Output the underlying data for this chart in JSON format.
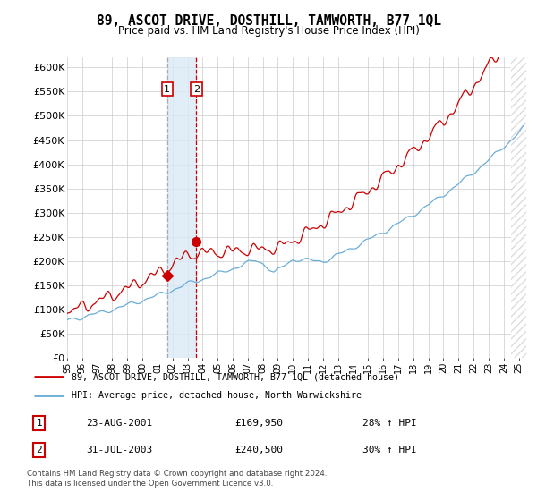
{
  "title": "89, ASCOT DRIVE, DOSTHILL, TAMWORTH, B77 1QL",
  "subtitle": "Price paid vs. HM Land Registry's House Price Index (HPI)",
  "xlim_start": 1995.0,
  "xlim_end": 2025.5,
  "ylim_min": 0,
  "ylim_max": 620000,
  "yticks": [
    0,
    50000,
    100000,
    150000,
    200000,
    250000,
    300000,
    350000,
    400000,
    450000,
    500000,
    550000,
    600000
  ],
  "ytick_labels": [
    "£0",
    "£50K",
    "£100K",
    "£150K",
    "£200K",
    "£250K",
    "£300K",
    "£350K",
    "£400K",
    "£450K",
    "£500K",
    "£550K",
    "£600K"
  ],
  "sale1_year": 2001.646,
  "sale1_price": 169950,
  "sale2_year": 2003.581,
  "sale2_price": 240500,
  "highlight_color": "#daeaf7",
  "vline1_color": "#aaaaaa",
  "vline2_color": "#cc0000",
  "legend_line1": "89, ASCOT DRIVE, DOSTHILL, TAMWORTH, B77 1QL (detached house)",
  "legend_line2": "HPI: Average price, detached house, North Warwickshire",
  "table_row1": [
    "1",
    "23-AUG-2001",
    "£169,950",
    "28% ↑ HPI"
  ],
  "table_row2": [
    "2",
    "31-JUL-2003",
    "£240,500",
    "30% ↑ HPI"
  ],
  "footnote": "Contains HM Land Registry data © Crown copyright and database right 2024.\nThis data is licensed under the Open Government Licence v3.0.",
  "hpi_color": "#6baed6",
  "price_color": "#cc0000",
  "background_color": "#ffffff",
  "grid_color": "#cccccc",
  "hatch_start": 2024.5
}
